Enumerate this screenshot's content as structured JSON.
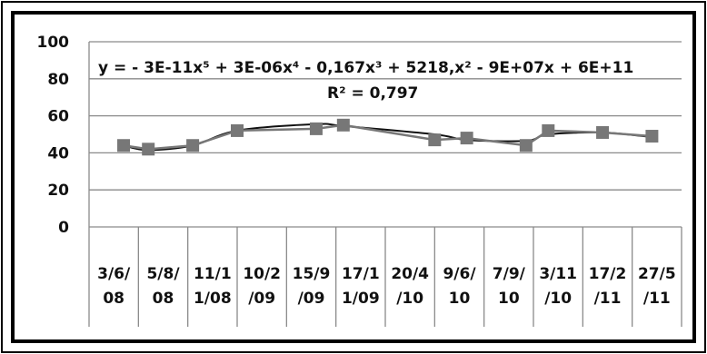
{
  "chart_data": {
    "type": "line",
    "title": "",
    "xlabel": "",
    "ylabel": "",
    "ylim": [
      0,
      100
    ],
    "yticks": [
      0,
      20,
      40,
      60,
      80,
      100
    ],
    "grid": true,
    "categories": [
      [
        "3/6/",
        "08"
      ],
      [
        "5/8/",
        "08"
      ],
      [
        "11/1",
        "1/08"
      ],
      [
        "10/2",
        "/09"
      ],
      [
        "15/9",
        "/09"
      ],
      [
        "17/1",
        "1/09"
      ],
      [
        "20/4",
        "/10"
      ],
      [
        "9/6/",
        "10"
      ],
      [
        "7/9/",
        "10"
      ],
      [
        "3/11",
        "/10"
      ],
      [
        "17/2",
        "/11"
      ],
      [
        "27/5",
        "/11"
      ]
    ],
    "x_positions": [
      0.2,
      0.7,
      1.6,
      2.5,
      4.1,
      4.65,
      6.5,
      7.15,
      8.35,
      8.8,
      9.9,
      10.9
    ],
    "series": [
      {
        "values": [
          44,
          42,
          44,
          52,
          53,
          55,
          47,
          48,
          44,
          52,
          51,
          49
        ],
        "color": "#777777",
        "marker": "square"
      }
    ],
    "trendline": {
      "type": "polynomial",
      "color": "#111111",
      "equation_prefix": "y = ",
      "equation_body": "- 3E-11x⁵ + 3E-06x⁴ - 0,167x³ + 5218,x² - 9E+07x + 6E+11",
      "r_squared": "R² = 0,797",
      "values": [
        44,
        41.5,
        44,
        52,
        55.5,
        54.5,
        50,
        47,
        46.5,
        50,
        51,
        48.5
      ]
    }
  }
}
